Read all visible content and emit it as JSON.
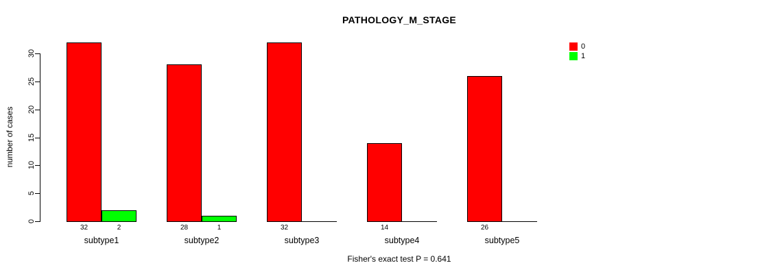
{
  "chart_data": {
    "type": "bar",
    "title": "PATHOLOGY_M_STAGE",
    "categories": [
      "subtype1",
      "subtype2",
      "subtype3",
      "subtype4",
      "subtype5"
    ],
    "series": [
      {
        "name": "0",
        "color": "#FF0000",
        "values": [
          32,
          28,
          32,
          14,
          26
        ]
      },
      {
        "name": "1",
        "color": "#00FF00",
        "values": [
          2,
          1,
          0,
          0,
          0
        ]
      }
    ],
    "xlabel": "",
    "ylabel": "number of cases",
    "ylim": [
      0,
      30
    ],
    "yticks": [
      0,
      5,
      10,
      15,
      20,
      25,
      30
    ],
    "bar_value_labels": true,
    "grid": false,
    "legend_position": "top-right",
    "annotation": "Fisher's exact test P = 0.641"
  }
}
